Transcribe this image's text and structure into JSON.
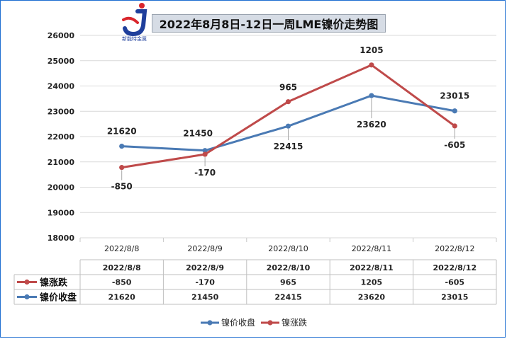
{
  "logo": {
    "text": "新能特金属"
  },
  "chart_data": {
    "type": "line",
    "title": "2022年8月8日-12日一周LME镍价走势图",
    "categories": [
      "2022/8/8",
      "2022/8/9",
      "2022/8/10",
      "2022/8/11",
      "2022/8/12"
    ],
    "ylim": [
      18000,
      26000
    ],
    "yticks": [
      18000,
      19000,
      20000,
      21000,
      22000,
      23000,
      24000,
      25000,
      26000
    ],
    "grid": true,
    "legend": "bottom",
    "series": [
      {
        "name": "镍价收盘",
        "color": "#4a7ab4",
        "values": [
          21620,
          21450,
          22415,
          23620,
          23015
        ],
        "labels": [
          "21620",
          "21450",
          "22415",
          "23620",
          "23015"
        ]
      },
      {
        "name": "镍涨跌",
        "color": "#bf4a4a",
        "plot_values": [
          20780,
          21300,
          23380,
          24830,
          22420
        ],
        "labels": [
          "-850",
          "-170",
          "965",
          "1205",
          "-605"
        ]
      }
    ],
    "table": {
      "header": [
        "2022/8/8",
        "2022/8/9",
        "2022/8/10",
        "2022/8/11",
        "2022/8/12"
      ],
      "rows": [
        {
          "name": "镍涨跌",
          "color": "#bf4a4a",
          "values": [
            "-850",
            "-170",
            "965",
            "1205",
            "-605"
          ]
        },
        {
          "name": "镍价收盘",
          "color": "#4a7ab4",
          "values": [
            "21620",
            "21450",
            "22415",
            "23620",
            "23015"
          ]
        }
      ]
    }
  }
}
